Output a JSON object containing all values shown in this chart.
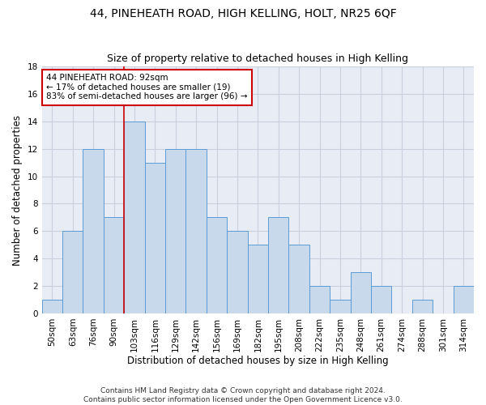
{
  "title": "44, PINEHEATH ROAD, HIGH KELLING, HOLT, NR25 6QF",
  "subtitle": "Size of property relative to detached houses in High Kelling",
  "xlabel": "Distribution of detached houses by size in High Kelling",
  "ylabel": "Number of detached properties",
  "categories": [
    "50sqm",
    "63sqm",
    "76sqm",
    "90sqm",
    "103sqm",
    "116sqm",
    "129sqm",
    "142sqm",
    "156sqm",
    "169sqm",
    "182sqm",
    "195sqm",
    "208sqm",
    "222sqm",
    "235sqm",
    "248sqm",
    "261sqm",
    "274sqm",
    "288sqm",
    "301sqm",
    "314sqm"
  ],
  "values": [
    1,
    6,
    12,
    7,
    14,
    11,
    12,
    12,
    7,
    6,
    5,
    7,
    5,
    2,
    1,
    3,
    2,
    0,
    1,
    0,
    2
  ],
  "bar_color": "#c9d9ec",
  "bar_edge_color": "#5b9bd5",
  "reference_line_x": 3.5,
  "reference_line_color": "#cc0000",
  "ylim": [
    0,
    18
  ],
  "yticks": [
    0,
    2,
    4,
    6,
    8,
    10,
    12,
    14,
    16,
    18
  ],
  "annotation_line1": "44 PINEHEATH ROAD: 92sqm",
  "annotation_line2": "← 17% of detached houses are smaller (19)",
  "annotation_line3": "83% of semi-detached houses are larger (96) →",
  "annotation_box_color": "#ffffff",
  "annotation_box_edge_color": "#cc0000",
  "footer_line1": "Contains HM Land Registry data © Crown copyright and database right 2024.",
  "footer_line2": "Contains public sector information licensed under the Open Government Licence v3.0.",
  "background_color": "#ffffff",
  "plot_bg_color": "#e8edf5",
  "grid_color": "#c8d0de",
  "title_fontsize": 10,
  "subtitle_fontsize": 9,
  "tick_fontsize": 7.5,
  "ylabel_fontsize": 8.5,
  "xlabel_fontsize": 8.5,
  "annotation_fontsize": 7.5,
  "footer_fontsize": 6.5
}
